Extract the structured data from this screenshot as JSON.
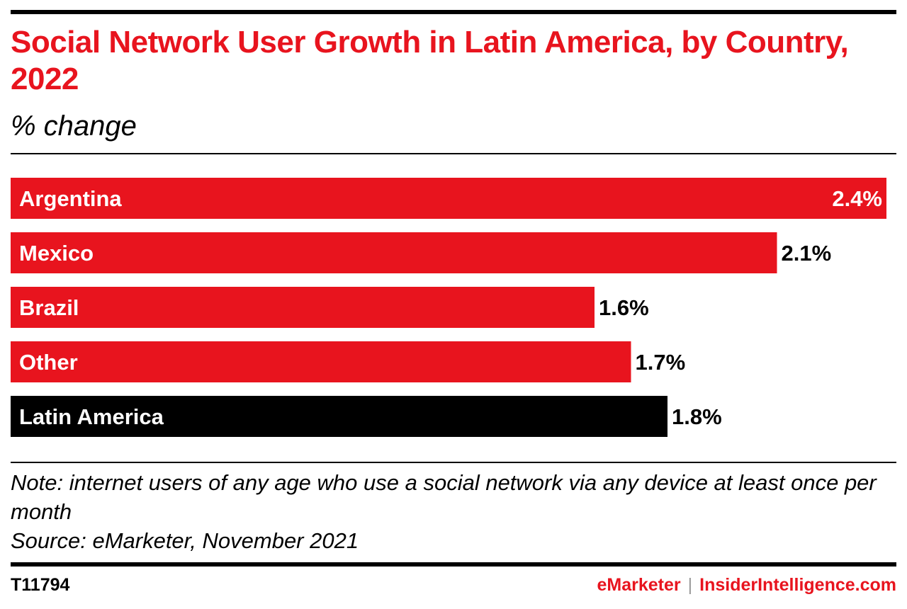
{
  "header": {
    "title": "Social Network User Growth in Latin America, by Country, 2022",
    "subtitle": "% change"
  },
  "chart_data": {
    "type": "bar",
    "orientation": "horizontal",
    "title": "Social Network User Growth in Latin America, by Country, 2022",
    "subtitle": "% change",
    "categories": [
      "Argentina",
      "Mexico",
      "Brazil",
      "Other",
      "Latin America"
    ],
    "values": [
      2.4,
      2.1,
      1.6,
      1.7,
      1.8
    ],
    "value_labels": [
      "2.4%",
      "2.1%",
      "1.6%",
      "1.7%",
      "1.8%"
    ],
    "bar_colors": [
      "#e8141e",
      "#e8141e",
      "#e8141e",
      "#e8141e",
      "#000000"
    ],
    "xlim": [
      0,
      2.4
    ],
    "grid": false,
    "legend": "none"
  },
  "footer": {
    "note": "Note: internet users of any age who use a social network via any device at least once per month",
    "source": "Source: eMarketer, November 2021",
    "chart_id": "T11794",
    "brand_emarketer": "eMarketer",
    "brand_separator": "|",
    "brand_insider": "InsiderIntelligence.com"
  },
  "colors": {
    "accent": "#e8141e",
    "text": "#000000",
    "background": "#ffffff"
  }
}
